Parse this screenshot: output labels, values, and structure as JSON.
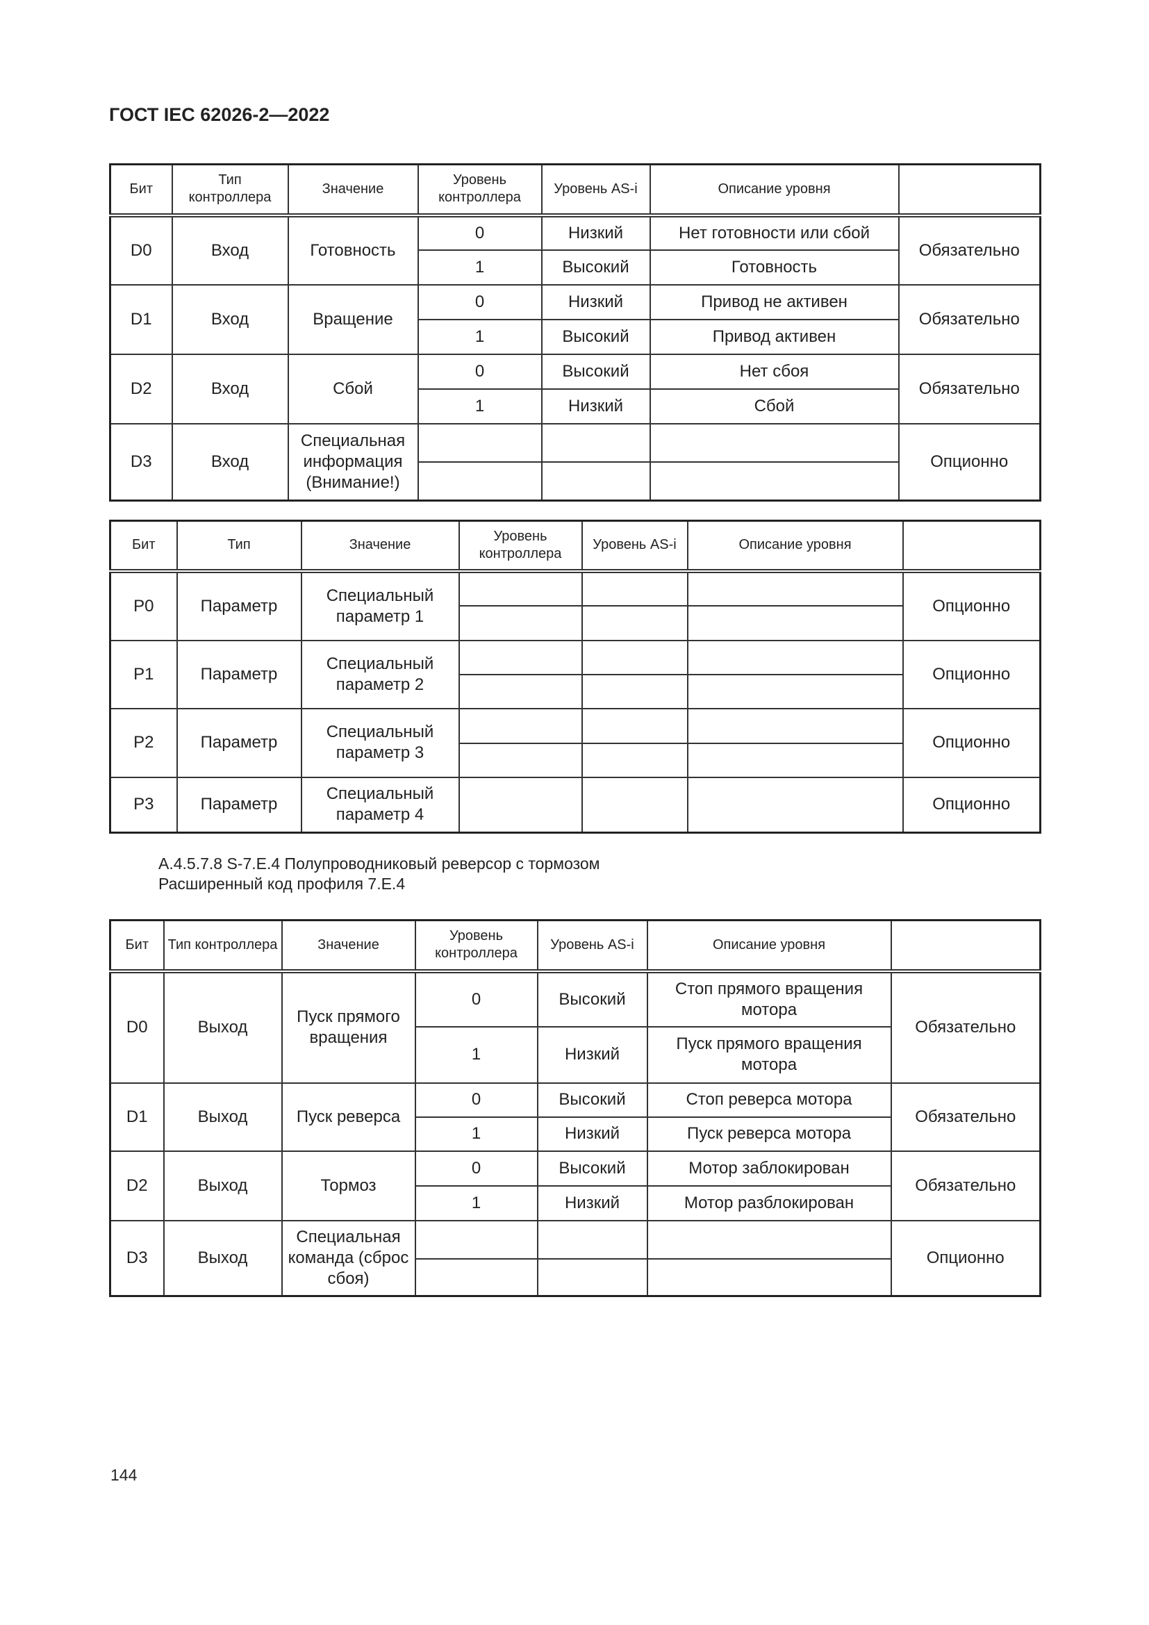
{
  "header": {
    "title": "ГОСТ IEC 62026-2—2022"
  },
  "tables": [
    {
      "headers": [
        "Бит",
        "Тип контроллера",
        "Значение",
        "Уровень контроллера",
        "Уровень AS-i",
        "Описание уровня",
        ""
      ],
      "groups": [
        {
          "bit": "D0",
          "type": "Вход",
          "meaning": "Готовность",
          "levels": [
            [
              "0",
              "Низкий",
              "Нет готовности или сбой"
            ],
            [
              "1",
              "Высокий",
              "Готовность"
            ]
          ],
          "req": "Обязательно"
        },
        {
          "bit": "D1",
          "type": "Вход",
          "meaning": "Вращение",
          "levels": [
            [
              "0",
              "Низкий",
              "Привод не активен"
            ],
            [
              "1",
              "Высокий",
              "Привод активен"
            ]
          ],
          "req": "Обязательно"
        },
        {
          "bit": "D2",
          "type": "Вход",
          "meaning": "Сбой",
          "levels": [
            [
              "0",
              "Высокий",
              "Нет сбоя"
            ],
            [
              "1",
              "Низкий",
              "Сбой"
            ]
          ],
          "req": "Обязательно"
        },
        {
          "bit": "D3",
          "type": "Вход",
          "meaning": "Специальная информация (Внимание!)",
          "levels": [
            [
              "",
              "",
              ""
            ],
            [
              "",
              "",
              ""
            ]
          ],
          "req": "Опционно"
        }
      ]
    },
    {
      "headers": [
        "Бит",
        "Тип",
        "Значение",
        "Уровень контроллера",
        "Уровень AS-i",
        "Описание уровня",
        ""
      ],
      "groups": [
        {
          "bit": "P0",
          "type": "Параметр",
          "meaning": "Специальный параметр 1",
          "levels": [
            [
              "",
              "",
              ""
            ],
            [
              "",
              "",
              ""
            ]
          ],
          "req": "Опционно"
        },
        {
          "bit": "P1",
          "type": "Параметр",
          "meaning": "Специальный параметр 2",
          "levels": [
            [
              "",
              "",
              ""
            ],
            [
              "",
              "",
              ""
            ]
          ],
          "req": "Опционно"
        },
        {
          "bit": "P2",
          "type": "Параметр",
          "meaning": "Специальный параметр 3",
          "levels": [
            [
              "",
              "",
              ""
            ],
            [
              "",
              "",
              ""
            ]
          ],
          "req": "Опционно"
        },
        {
          "bit": "P3",
          "type": "Параметр",
          "meaning": "Специальный параметр 4",
          "levels": [
            [
              "",
              "",
              ""
            ]
          ],
          "req": "Опционно"
        }
      ]
    },
    {
      "headers": [
        "Бит",
        "Тип контроллера",
        "Значение",
        "Уровень контроллера",
        "Уровень AS-i",
        "Описание уровня",
        ""
      ],
      "groups": [
        {
          "bit": "D0",
          "type": "Выход",
          "meaning": "Пуск прямого вращения",
          "levels": [
            [
              "0",
              "Высокий",
              "Стоп прямого вращения мотора"
            ],
            [
              "1",
              "Низкий",
              "Пуск прямого вращения мотора"
            ]
          ],
          "req": "Обязательно"
        },
        {
          "bit": "D1",
          "type": "Выход",
          "meaning": "Пуск реверса",
          "levels": [
            [
              "0",
              "Высокий",
              "Стоп реверса мотора"
            ],
            [
              "1",
              "Низкий",
              "Пуск реверса мотора"
            ]
          ],
          "req": "Обязательно"
        },
        {
          "bit": "D2",
          "type": "Выход",
          "meaning": "Тормоз",
          "levels": [
            [
              "0",
              "Высокий",
              "Мотор заблокирован"
            ],
            [
              "1",
              "Низкий",
              "Мотор разблокирован"
            ]
          ],
          "req": "Обязательно"
        },
        {
          "bit": "D3",
          "type": "Выход",
          "meaning": "Специальная команда (сброс сбоя)",
          "levels": [
            [
              "",
              "",
              ""
            ],
            [
              "",
              "",
              ""
            ]
          ],
          "req": "Опционно"
        }
      ]
    }
  ],
  "section": {
    "heading": "A.4.5.7.8 S-7.E.4 Полупроводниковый реверсор с тормозом",
    "subheading": "Расширенный код профиля 7.E.4"
  },
  "footer": {
    "page_number": "144"
  }
}
